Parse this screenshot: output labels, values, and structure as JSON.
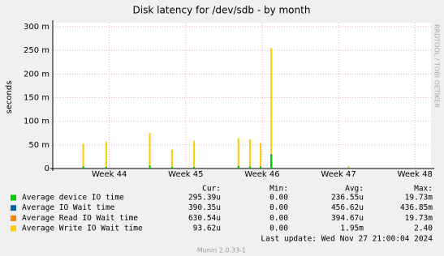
{
  "chart_data": {
    "type": "bar",
    "title": "Disk latency for /dev/sdb - by month",
    "y_label": "seconds",
    "side_text": "RRDTOOL / TOBI OETIKER",
    "x": [
      43.66,
      43.96,
      44.53,
      44.82,
      45.11,
      45.69,
      45.84,
      45.98,
      46.12,
      47.13
    ],
    "xlim": [
      43.26,
      48.21
    ],
    "xticks": [
      {
        "value": 44,
        "label": "Week 44"
      },
      {
        "value": 45,
        "label": "Week 45"
      },
      {
        "value": 46,
        "label": "Week 46"
      },
      {
        "value": 47,
        "label": "Week 47"
      },
      {
        "value": 48,
        "label": "Week 48"
      }
    ],
    "ylim": [
      0,
      300
    ],
    "yticks": [
      0,
      {
        "value": 50,
        "label": "50 m"
      },
      {
        "value": 100,
        "label": "100 m"
      },
      {
        "value": 150,
        "label": "150 m"
      },
      {
        "value": 200,
        "label": "200 m"
      },
      {
        "value": 250,
        "label": "250 m"
      },
      {
        "value": 300,
        "label": "300 m"
      }
    ],
    "grid": true,
    "legend_headers": [
      "Cur:",
      "Min:",
      "Avg:",
      "Max:"
    ],
    "series": [
      {
        "name": "Average device IO time",
        "color": "#00cc00",
        "values": [
          3,
          2,
          5,
          3,
          2,
          4,
          3,
          3,
          28,
          1
        ],
        "cur": "295.39u",
        "min": "0.00",
        "avg": "236.55u",
        "max": "19.73m"
      },
      {
        "name": "Average IO Wait time",
        "color": "#0066b3",
        "values": [
          4,
          3,
          6,
          3,
          3,
          5,
          4,
          4,
          30,
          2
        ],
        "cur": "390.35u",
        "min": "0.00",
        "avg": "456.62u",
        "max": "436.85m"
      },
      {
        "name": "Average Read IO Wait time",
        "color": "#ff8000",
        "values": [
          1,
          1,
          2,
          1,
          1,
          2,
          1,
          1,
          3,
          1
        ],
        "cur": "630.54u",
        "min": "0.00",
        "avg": "394.67u",
        "max": "19.73m"
      },
      {
        "name": "Average Write IO Wait time",
        "color": "#ffcc00",
        "values": [
          52,
          57,
          75,
          40,
          59,
          64,
          62,
          54,
          255,
          5
        ],
        "cur": "93.62u",
        "min": "0.00",
        "avg": "1.95m",
        "max": "2.40"
      }
    ],
    "last_update": "Last update: Wed Nov 27 21:00:04 2024",
    "footer": "Munin 2.0.33-1"
  }
}
